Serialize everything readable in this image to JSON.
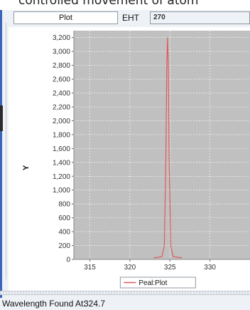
{
  "caption": "controlled movement of atom",
  "toolbar": {
    "plot_field_value": "Plot",
    "eht_label": "EHT",
    "eht_value": "270"
  },
  "chart_data": {
    "type": "line",
    "title": "",
    "xlabel": "",
    "ylabel": "Y",
    "xlim": [
      313,
      335
    ],
    "ylim": [
      0,
      3300
    ],
    "x_ticks": [
      315,
      320,
      325,
      330
    ],
    "y_ticks": [
      0,
      200,
      400,
      600,
      800,
      1000,
      1200,
      1400,
      1600,
      1800,
      2000,
      2200,
      2400,
      2600,
      2800,
      3000,
      3200
    ],
    "y_tick_labels": [
      "0",
      "200",
      "400",
      "600",
      "800",
      "1,000",
      "1,200",
      "1,400",
      "1,600",
      "1,800",
      "2,000",
      "2,200",
      "2,400",
      "2,600",
      "2,800",
      "3,000",
      "3,200"
    ],
    "grid": true,
    "legend_position": "bottom",
    "colors": {
      "plot_background": "#c0c0c0",
      "series": "#e05a5a"
    },
    "series": [
      {
        "name": "Peal:Plot",
        "x": [
          323.0,
          323.5,
          324.0,
          324.3,
          324.5,
          324.6,
          324.7,
          324.8,
          324.9,
          325.1,
          325.4,
          326.0,
          326.5
        ],
        "y": [
          25,
          30,
          40,
          200,
          1500,
          2800,
          3200,
          2800,
          1500,
          200,
          40,
          30,
          25
        ]
      }
    ]
  },
  "status": {
    "label": "Wavelength Found At:",
    "value": "324.7"
  }
}
